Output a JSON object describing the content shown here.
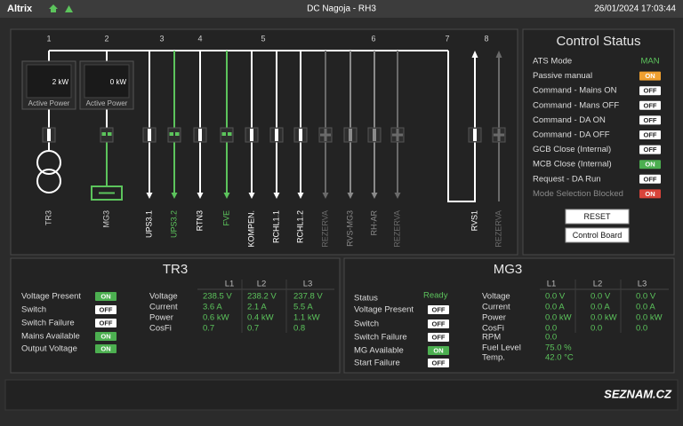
{
  "header": {
    "brand": "Altrix",
    "title": "DC Nagoja - RH3",
    "datetime": "26/01/2024 17:03:44"
  },
  "diagram": {
    "columns": [
      "1",
      "2",
      "3",
      "4",
      "5",
      "6",
      "7",
      "8"
    ],
    "power_boxes": [
      {
        "value": "2 kW",
        "label": "Active Power"
      },
      {
        "value": "0 kW",
        "label": "Active Power"
      }
    ],
    "feeders": [
      {
        "label": "TR3",
        "color": "#ffffff"
      },
      {
        "label": "MG3",
        "color": "#5cc45c"
      },
      {
        "label": "UPS3.1",
        "color": "#ffffff"
      },
      {
        "label": "UPS3.2",
        "color": "#5cc45c"
      },
      {
        "label": "RTN3",
        "color": "#ffffff"
      },
      {
        "label": "FVE",
        "color": "#5cc45c"
      },
      {
        "label": "KOMPEN.",
        "color": "#ffffff"
      },
      {
        "label": "RCHL1.1",
        "color": "#ffffff"
      },
      {
        "label": "RCHL1.2",
        "color": "#ffffff"
      },
      {
        "label": "REZERVA",
        "color": "#6a6a6a"
      },
      {
        "label": "RVS-MG3",
        "color": "#8a8a8a"
      },
      {
        "label": "RH-AR",
        "color": "#8a8a8a"
      },
      {
        "label": "REZERVA",
        "color": "#6a6a6a"
      },
      {
        "label": "RVS1",
        "color": "#ffffff"
      },
      {
        "label": "REZERVA",
        "color": "#6a6a6a"
      }
    ]
  },
  "control_status": {
    "title": "Control Status",
    "rows": [
      {
        "label": "ATS Mode",
        "value": "MAN"
      },
      {
        "label": "Passive manual",
        "state": "ON",
        "color": "#f0a030"
      },
      {
        "label": "Command - Mains ON",
        "state": "OFF"
      },
      {
        "label": "Command - Mans OFF",
        "state": "OFF"
      },
      {
        "label": "Command - DA ON",
        "state": "OFF"
      },
      {
        "label": "Command - DA OFF",
        "state": "OFF"
      },
      {
        "label": "GCB Close (Internal)",
        "state": "OFF"
      },
      {
        "label": "MCB Close (Internal)",
        "state": "ON"
      },
      {
        "label": "Request - DA Run",
        "state": "OFF"
      },
      {
        "label": "Mode Selection Blocked",
        "state": "ON",
        "color": "#d9443a",
        "label_color": "#8a8a8a"
      }
    ],
    "buttons": [
      "RESET",
      "Control Board"
    ]
  },
  "tr3": {
    "title": "TR3",
    "indicators": [
      {
        "label": "Voltage Present",
        "state": "ON"
      },
      {
        "label": "Switch",
        "state": "OFF"
      },
      {
        "label": "Switch Failure",
        "state": "OFF"
      },
      {
        "label": "Mains Available",
        "state": "ON"
      },
      {
        "label": "Output Voltage",
        "state": "ON"
      }
    ],
    "phases": [
      "L1",
      "L2",
      "L3"
    ],
    "measurements": [
      {
        "label": "Voltage",
        "values": [
          "238.5 V",
          "238.2 V",
          "237.8 V"
        ]
      },
      {
        "label": "Current",
        "values": [
          "3.6 A",
          "2.1 A",
          "5.5 A"
        ]
      },
      {
        "label": "Power",
        "values": [
          "0.6 kW",
          "0.4 kW",
          "1.1 kW"
        ]
      },
      {
        "label": "CosFi",
        "values": [
          "0.7",
          "0.7",
          "0.8"
        ]
      }
    ]
  },
  "mg3": {
    "title": "MG3",
    "status": {
      "label": "Status",
      "value": "Ready"
    },
    "indicators": [
      {
        "label": "Voltage Present",
        "state": "OFF"
      },
      {
        "label": "Switch",
        "state": "OFF"
      },
      {
        "label": "Switch Failure",
        "state": "OFF"
      },
      {
        "label": "MG Available",
        "state": "ON"
      },
      {
        "label": "Start Failure",
        "state": "OFF"
      }
    ],
    "phases": [
      "L1",
      "L2",
      "L3"
    ],
    "measurements": [
      {
        "label": "Voltage",
        "values": [
          "0.0 V",
          "0.0 V",
          "0.0 V"
        ]
      },
      {
        "label": "Current",
        "values": [
          "0.0 A",
          "0.0 A",
          "0.0 A"
        ]
      },
      {
        "label": "Power",
        "values": [
          "0.0 kW",
          "0.0 kW",
          "0.0 kW"
        ]
      },
      {
        "label": "CosFi",
        "values": [
          "0.0",
          "0.0",
          "0.0"
        ]
      }
    ],
    "extras": [
      {
        "label": "RPM",
        "value": "0.0"
      },
      {
        "label": "Fuel Level",
        "value": "75.0 %"
      },
      {
        "label": "Temp.",
        "value": "42.0 °C"
      }
    ]
  },
  "footer": {
    "logo": "SEZNAM.CZ"
  }
}
